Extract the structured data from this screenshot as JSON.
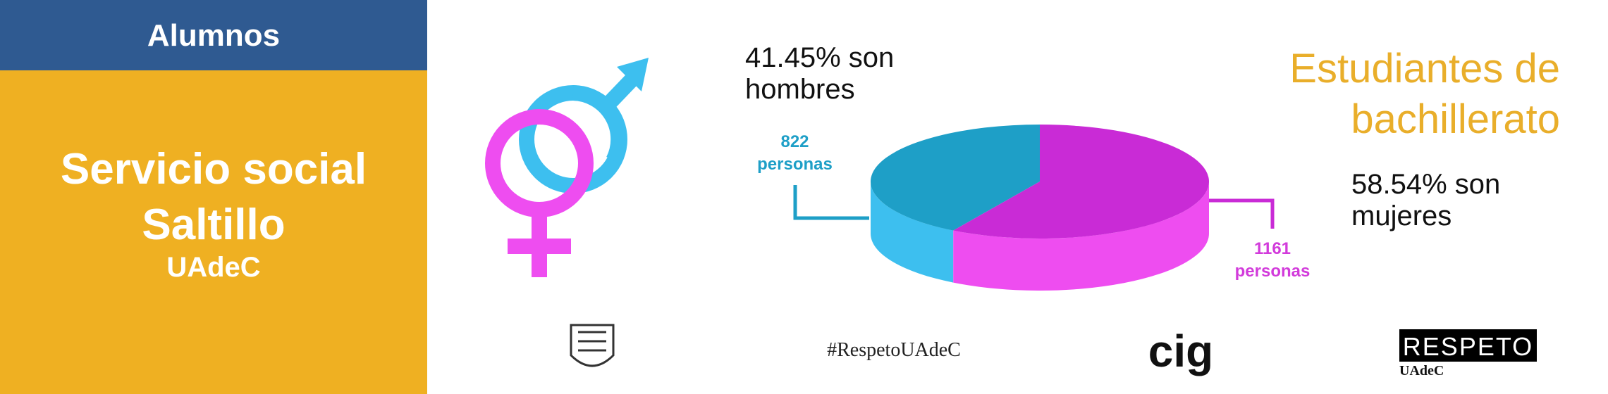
{
  "panel": {
    "header": "Alumnos",
    "title_lines": [
      "Servicio social",
      "Saltillo"
    ],
    "subtitle": "UAdeC"
  },
  "chart_data": {
    "type": "pie",
    "title": "Estudiantes de bachillerato",
    "values": [
      41.45,
      58.54
    ],
    "value_labels": [
      "41.45% son hombres",
      "58.54% son mujeres"
    ],
    "counts": [
      822,
      1161
    ],
    "count_labels": [
      "822 personas",
      "1161 personas"
    ],
    "colors": [
      "#1e9fc7",
      "#c92bd6"
    ],
    "side_colors": [
      "#3dbfef",
      "#ee4df0"
    ]
  },
  "footer": {
    "hashtag": "#RespetoUAdeC",
    "cig": "cig",
    "respeto": "RESPETO",
    "respeto_sub": "UAdeC"
  }
}
